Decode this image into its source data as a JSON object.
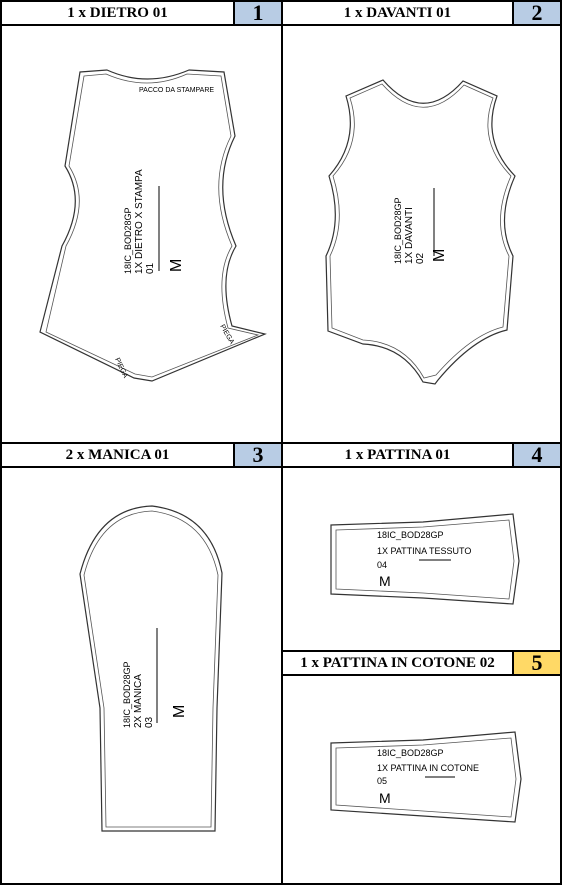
{
  "panels": [
    {
      "title": "1 x DIETRO 01",
      "number": "1",
      "number_color": "#b8cce4",
      "labels": {
        "top_note": "PACCO DA STAMPARE",
        "code": "18IC_BOD28GP",
        "name": "1X DIETRO X STAMPA",
        "piece": "01",
        "size": "M",
        "fold_right": "PIEGA",
        "fold_left": "PIEGA"
      }
    },
    {
      "title": "1 x DAVANTI 01",
      "number": "2",
      "number_color": "#b8cce4",
      "labels": {
        "code": "18IC_BOD28GP",
        "name": "1X DAVANTI",
        "piece": "02",
        "size": "M"
      }
    },
    {
      "title": "2 x MANICA 01",
      "number": "3",
      "number_color": "#b8cce4",
      "labels": {
        "code": "18IC_BOD28GP",
        "name": "2X MANICA",
        "piece": "03",
        "size": "M"
      }
    },
    {
      "title": "1 x PATTINA 01",
      "number": "4",
      "number_color": "#b8cce4",
      "labels": {
        "code": "18IC_BOD28GP",
        "name": "1X PATTINA TESSUTO",
        "piece": "04",
        "size": "M"
      }
    },
    {
      "title": "1 x PATTINA IN COTONE 02",
      "number": "5",
      "number_color": "#ffd966",
      "labels": {
        "code": "18IC_BOD28GP",
        "name": "1X PATTINA IN COTONE",
        "piece": "05",
        "size": "M"
      }
    }
  ]
}
